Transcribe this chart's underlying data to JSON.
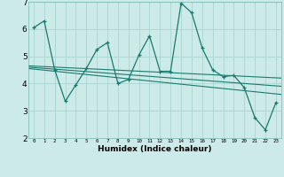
{
  "xlabel": "Humidex (Indice chaleur)",
  "bg_color": "#cceae7",
  "grid_color": "#aad4d0",
  "line_color": "#1a7a6e",
  "x_values": [
    0,
    1,
    2,
    3,
    4,
    5,
    6,
    7,
    8,
    9,
    10,
    11,
    12,
    13,
    14,
    15,
    16,
    17,
    18,
    19,
    20,
    21,
    22,
    23
  ],
  "series1": [
    6.05,
    6.3,
    4.5,
    3.35,
    3.95,
    4.55,
    5.25,
    5.5,
    4.0,
    4.15,
    5.05,
    5.75,
    4.45,
    4.45,
    6.95,
    6.6,
    5.3,
    4.5,
    4.25,
    4.3,
    3.85,
    2.75,
    2.3,
    3.3
  ],
  "trend1_start": 4.65,
  "trend1_end": 4.2,
  "trend2_start": 4.6,
  "trend2_end": 3.9,
  "trend3_start": 4.55,
  "trend3_end": 3.6,
  "ylim": [
    2,
    7
  ],
  "xlim_min": -0.5,
  "xlim_max": 23.5,
  "yticks": [
    2,
    3,
    4,
    5,
    6,
    7
  ]
}
